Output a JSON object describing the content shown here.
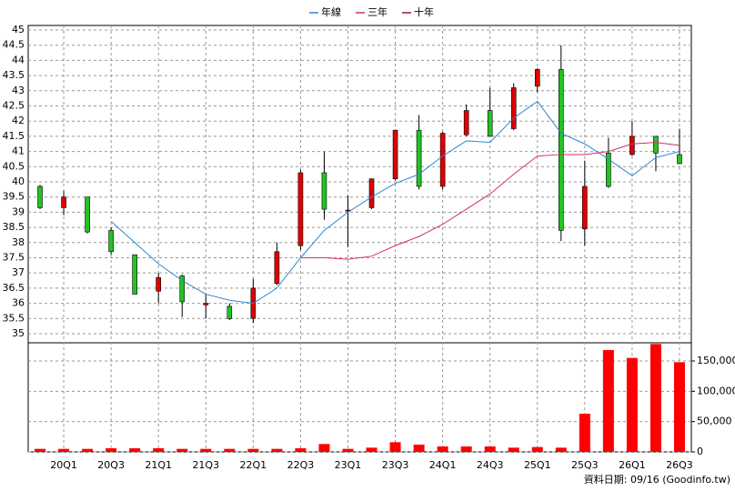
{
  "chart_data": {
    "type": "candlestick",
    "categories": [
      null,
      "20Q1",
      null,
      "20Q3",
      null,
      "21Q1",
      null,
      "21Q3",
      null,
      "22Q1",
      null,
      "22Q3",
      null,
      "23Q1",
      null,
      "23Q3",
      null,
      "24Q1",
      null,
      "24Q3",
      null,
      "25Q1",
      null,
      "25Q3",
      null,
      "26Q1",
      null,
      "26Q3"
    ],
    "open": [
      39.85,
      39.15,
      39.5,
      38.4,
      37.6,
      36.4,
      36.9,
      35.95,
      35.9,
      35.5,
      36.65,
      37.9,
      40.3,
      39.05,
      39.15,
      40.1,
      41.7,
      39.85,
      41.55,
      42.35,
      41.75,
      43.15,
      43.7,
      38.45,
      40.95,
      40.9,
      41.5,
      40.9
    ],
    "high": [
      39.9,
      39.7,
      39.5,
      38.5,
      37.6,
      37.0,
      36.95,
      36.3,
      36.0,
      36.8,
      38.0,
      40.4,
      41.0,
      39.55,
      40.1,
      41.7,
      42.2,
      41.65,
      42.55,
      43.1,
      43.25,
      43.75,
      44.5,
      40.7,
      41.45,
      42.0,
      41.5,
      41.75
    ],
    "low": [
      39.1,
      38.9,
      38.3,
      37.6,
      36.3,
      36.0,
      35.55,
      35.5,
      35.45,
      35.35,
      36.6,
      37.75,
      38.75,
      37.85,
      39.1,
      40.05,
      39.75,
      39.75,
      41.5,
      41.5,
      41.7,
      42.95,
      38.05,
      37.9,
      39.8,
      40.85,
      40.35,
      40.6
    ],
    "close": [
      39.15,
      39.5,
      38.35,
      37.7,
      36.3,
      36.85,
      36.05,
      36.0,
      35.5,
      36.5,
      37.7,
      40.3,
      39.1,
      39.07,
      40.1,
      41.7,
      39.85,
      41.6,
      42.35,
      41.5,
      43.1,
      43.7,
      38.4,
      39.85,
      39.85,
      41.5,
      40.95,
      40.6
    ],
    "up_color": "#e00000",
    "down_color": "#22c422",
    "ylim": [
      34.7,
      45.15
    ],
    "yticks": [
      35,
      35.5,
      36,
      36.5,
      37,
      37.5,
      38,
      38.5,
      39,
      39.5,
      40,
      40.5,
      41,
      41.5,
      42,
      42.5,
      43,
      43.5,
      44,
      44.5,
      45
    ],
    "grid": true,
    "series": [
      {
        "name": "年線",
        "color": "#2f86d6",
        "values": [
          null,
          null,
          null,
          38.7,
          38.0,
          37.3,
          36.75,
          36.3,
          36.1,
          36.0,
          36.5,
          37.5,
          38.4,
          39.0,
          39.5,
          39.95,
          40.25,
          40.85,
          41.35,
          41.3,
          42.1,
          42.65,
          41.6,
          41.25,
          40.75,
          40.2,
          40.8,
          41.0
        ]
      },
      {
        "name": "三年",
        "color": "#d0306a",
        "values": [
          null,
          null,
          null,
          null,
          null,
          null,
          null,
          null,
          null,
          null,
          null,
          37.5,
          37.5,
          37.45,
          37.55,
          37.9,
          38.2,
          38.6,
          39.1,
          39.6,
          40.25,
          40.85,
          40.9,
          40.9,
          41.0,
          41.25,
          41.3,
          41.2
        ]
      },
      {
        "name": "十年",
        "color": "#8b1a5a",
        "values": [
          null,
          null,
          null,
          null,
          null,
          null,
          null,
          null,
          null,
          null,
          null,
          null,
          null,
          null,
          null,
          null,
          null,
          null,
          null,
          null,
          null,
          null,
          null,
          null,
          null,
          null,
          null,
          null
        ]
      }
    ],
    "volume": {
      "color": "#ff0000",
      "values": [
        5000,
        5000,
        5000,
        6000,
        6000,
        6000,
        5000,
        5000,
        5000,
        5000,
        5000,
        6000,
        13000,
        5000,
        7000,
        16000,
        12000,
        9000,
        9000,
        9000,
        7000,
        8000,
        7000,
        63000,
        168000,
        155000,
        178000,
        148000
      ],
      "ylim": [
        0,
        180000
      ],
      "yticks": [
        0,
        {
          "value": 50000,
          "label": "50,000"
        },
        {
          "value": 100000,
          "label": "100,000"
        },
        {
          "value": 150000,
          "label": "150,000"
        }
      ]
    },
    "footnote": "資料日期: 09/16 (Goodinfo.tw)"
  }
}
